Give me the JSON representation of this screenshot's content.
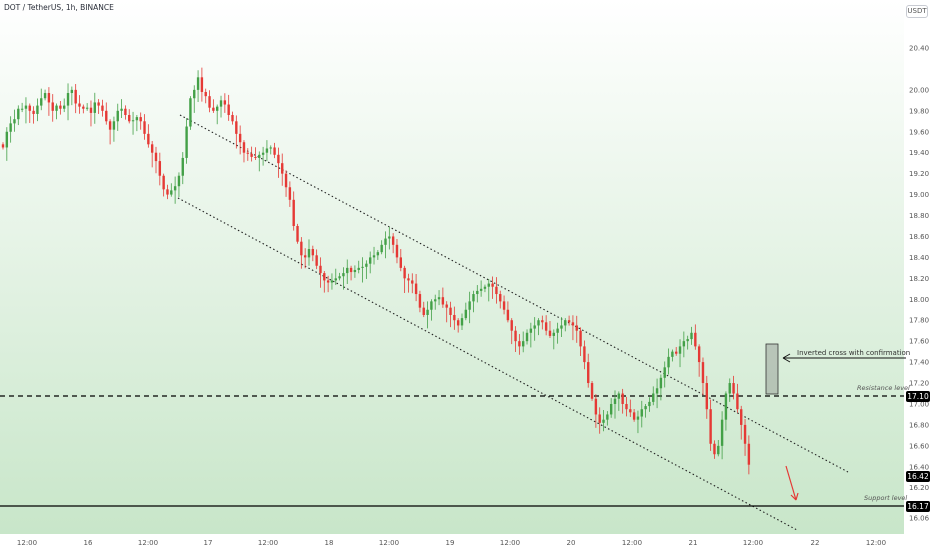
{
  "header": {
    "title": "DOT / TetherUS, 1h, BINANCE",
    "currency": "USDT"
  },
  "price_tags": {
    "resistance": "17.10",
    "last": "16.42",
    "support": "16.17"
  },
  "levels": {
    "resistance_label": "Resistance level",
    "support_label": "Support level"
  },
  "annotation": {
    "text": "Inverted cross with confirmation"
  },
  "colors": {
    "up": "#43a047",
    "down": "#e53935",
    "bg_top": "#ffffff",
    "bg_bottom": "#c8e6c9"
  },
  "chart_data": {
    "type": "candlestick",
    "title": "DOT / TetherUS, 1h, BINANCE",
    "y_ticks": [
      "20.40",
      "20.00",
      "19.80",
      "19.60",
      "19.40",
      "19.20",
      "19.00",
      "18.80",
      "18.60",
      "18.40",
      "18.20",
      "18.00",
      "17.80",
      "17.60",
      "17.40",
      "17.20",
      "17.00",
      "16.80",
      "16.60",
      "16.40",
      "16.20",
      "16.06"
    ],
    "x_ticks": [
      "12:00",
      "16",
      "12:00",
      "17",
      "12:00",
      "18",
      "12:00",
      "19",
      "12:00",
      "20",
      "12:00",
      "21",
      "12:00",
      "22",
      "12:00"
    ],
    "ylim": [
      16.05,
      20.5
    ],
    "horizontal_lines": [
      {
        "name": "Resistance level",
        "value": 17.1,
        "style": "dashed"
      },
      {
        "name": "Support level",
        "value": 16.17,
        "style": "solid"
      }
    ],
    "channel": {
      "upper": [
        [
          180,
          115
        ],
        [
          848,
          472
        ]
      ],
      "lower": [
        [
          178,
          198
        ],
        [
          797,
          530
        ]
      ]
    },
    "series": [
      {
        "name": "price",
        "closes": [
          19.45,
          19.6,
          19.68,
          19.72,
          19.82,
          19.82,
          19.85,
          19.8,
          19.77,
          19.85,
          19.92,
          19.97,
          19.88,
          19.8,
          19.85,
          19.82,
          19.85,
          19.97,
          20.0,
          19.87,
          19.84,
          19.82,
          19.83,
          19.78,
          19.88,
          19.85,
          19.8,
          19.7,
          19.62,
          19.7,
          19.8,
          19.82,
          19.76,
          19.7,
          19.71,
          19.74,
          19.7,
          19.58,
          19.48,
          19.4,
          19.32,
          19.18,
          19.05,
          19.0,
          19.04,
          19.08,
          19.18,
          19.35,
          19.65,
          19.92,
          20.0,
          20.12,
          19.98,
          19.94,
          19.83,
          19.8,
          19.84,
          19.9,
          19.86,
          19.76,
          19.7,
          19.58,
          19.5,
          19.4,
          19.39,
          19.36,
          19.35,
          19.38,
          19.4,
          19.44,
          19.45,
          19.38,
          19.3,
          19.2,
          19.07,
          18.95,
          18.7,
          18.55,
          18.42,
          18.4,
          18.48,
          18.42,
          18.32,
          18.25,
          18.18,
          18.16,
          18.18,
          18.2,
          18.22,
          18.25,
          18.3,
          18.26,
          18.28,
          18.3,
          18.31,
          18.34,
          18.4,
          18.42,
          18.45,
          18.52,
          18.58,
          18.6,
          18.52,
          18.4,
          18.3,
          18.2,
          18.18,
          18.15,
          18.05,
          17.92,
          17.85,
          17.9,
          17.98,
          18.0,
          18.02,
          17.95,
          17.92,
          17.85,
          17.8,
          17.75,
          17.82,
          17.9,
          17.98,
          18.05,
          18.08,
          18.1,
          18.12,
          18.15,
          18.12,
          18.05,
          17.98,
          17.9,
          17.8,
          17.7,
          17.6,
          17.55,
          17.6,
          17.68,
          17.72,
          17.75,
          17.8,
          17.78,
          17.7,
          17.65,
          17.68,
          17.72,
          17.75,
          17.8,
          17.78,
          17.75,
          17.7,
          17.55,
          17.4,
          17.2,
          17.05,
          16.9,
          16.82,
          16.85,
          16.9,
          17.0,
          17.05,
          17.1,
          17.0,
          16.95,
          16.92,
          16.85,
          16.88,
          16.95,
          16.98,
          17.02,
          17.1,
          17.15,
          17.25,
          17.35,
          17.45,
          17.5,
          17.48,
          17.55,
          17.6,
          17.62,
          17.68,
          17.55,
          17.4,
          17.2,
          16.95,
          16.62,
          16.52,
          16.6,
          16.85,
          17.1,
          17.2,
          17.1,
          16.95,
          16.8,
          16.62,
          16.42
        ]
      }
    ]
  }
}
